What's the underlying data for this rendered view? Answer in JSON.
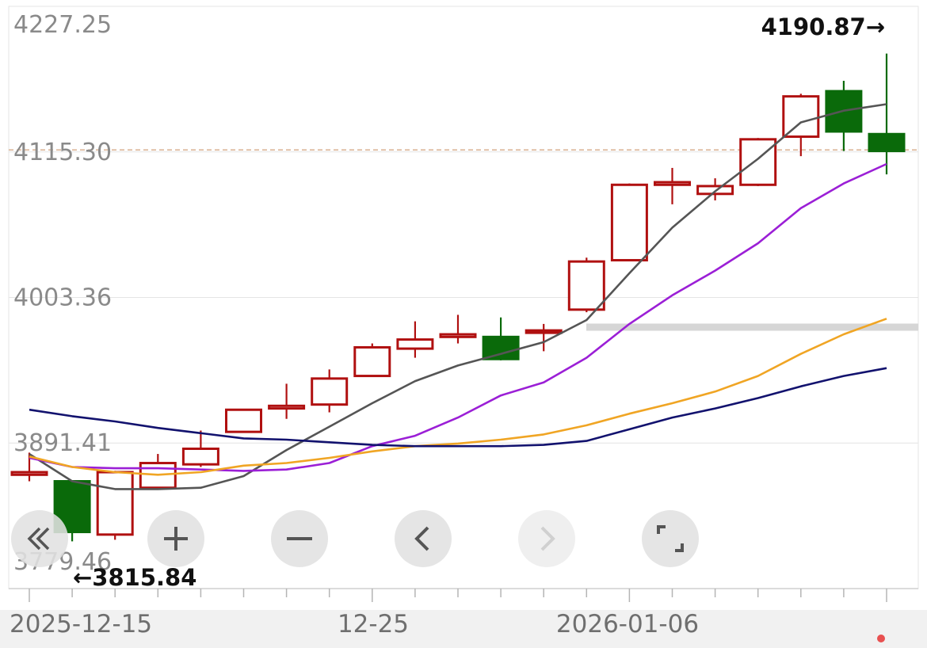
{
  "chart_data": {
    "type": "candlestick",
    "y_labels": [
      "4227.25",
      "4115.30",
      "4003.36",
      "3891.41",
      "3779.46"
    ],
    "x_labels": [
      "2025-12-15",
      "12-25",
      "2026-01-06"
    ],
    "max_annotation": "4190.87→",
    "min_annotation": "←3815.84",
    "reference_price": 4116.8,
    "candles": [
      {
        "o": 3867.0,
        "h": 3884.0,
        "l": 3862.0,
        "c": 3869.0
      },
      {
        "o": 3862.0,
        "h": 3862.0,
        "l": 3815.8,
        "c": 3823.0
      },
      {
        "o": 3821.0,
        "h": 3870.0,
        "l": 3817.0,
        "c": 3869.0
      },
      {
        "o": 3857.0,
        "h": 3883.0,
        "l": 3857.0,
        "c": 3876.0
      },
      {
        "o": 3875.0,
        "h": 3901.0,
        "l": 3873.0,
        "c": 3887.0
      },
      {
        "o": 3900.0,
        "h": 3917.0,
        "l": 3900.0,
        "c": 3917.0
      },
      {
        "o": 3918.0,
        "h": 3937.0,
        "l": 3910.0,
        "c": 3920.0
      },
      {
        "o": 3921.0,
        "h": 3948.0,
        "l": 3915.0,
        "c": 3941.0
      },
      {
        "o": 3943.0,
        "h": 3968.0,
        "l": 3943.0,
        "c": 3965.0
      },
      {
        "o": 3964.0,
        "h": 3985.0,
        "l": 3957.0,
        "c": 3971.0
      },
      {
        "o": 3973.0,
        "h": 3990.0,
        "l": 3968.0,
        "c": 3975.0
      },
      {
        "o": 3973.0,
        "h": 3988.0,
        "l": 3955.0,
        "c": 3956.0
      },
      {
        "o": 3977.0,
        "h": 3983.0,
        "l": 3962.0,
        "c": 3978.0
      },
      {
        "o": 3994.0,
        "h": 4034.0,
        "l": 3992.0,
        "c": 4031.0
      },
      {
        "o": 4032.0,
        "h": 4091.0,
        "l": 4032.0,
        "c": 4090.0
      },
      {
        "o": 4090.0,
        "h": 4103.0,
        "l": 4075.0,
        "c": 4092.0
      },
      {
        "o": 4083.0,
        "h": 4095.0,
        "l": 4078.0,
        "c": 4089.0
      },
      {
        "o": 4090.0,
        "h": 4126.0,
        "l": 4089.0,
        "c": 4125.0
      },
      {
        "o": 4127.0,
        "h": 4160.0,
        "l": 4112.0,
        "c": 4158.0
      },
      {
        "o": 4162.0,
        "h": 4170.0,
        "l": 4116.0,
        "c": 4131.0
      },
      {
        "o": 4129.0,
        "h": 4190.9,
        "l": 4098.0,
        "c": 4116.0
      }
    ],
    "ma_series": [
      {
        "color": "#555555",
        "values": [
          3883,
          3862,
          3856,
          3856,
          3857,
          3866,
          3886,
          3904,
          3922,
          3939,
          3951,
          3960,
          3969,
          3986,
          4022,
          4057,
          4085,
          4110,
          4138,
          4147,
          4152
        ]
      },
      {
        "color": "#9b1fd6",
        "values": [
          3880,
          3873,
          3872,
          3872,
          3871,
          3870,
          3871,
          3876,
          3889,
          3897,
          3911,
          3928,
          3938,
          3957,
          3983,
          4005,
          4024,
          4045,
          4072,
          4091,
          4106
        ]
      },
      {
        "color": "#f0a524",
        "values": [
          3881,
          3873,
          3869,
          3867,
          3869,
          3874,
          3876,
          3880,
          3885,
          3889,
          3891,
          3894,
          3898,
          3905,
          3914,
          3922,
          3931,
          3943,
          3960,
          3975,
          3987
        ]
      },
      {
        "color": "#12126e",
        "values": [
          3917,
          3912,
          3908,
          3903,
          3899,
          3895,
          3894,
          3892,
          3890,
          3889,
          3889,
          3889,
          3890,
          3893,
          3902,
          3911,
          3918,
          3926,
          3935,
          3943,
          3949
        ]
      }
    ],
    "colors": {
      "up": "#b01010",
      "down": "#0a6a0a",
      "grid": "#e4e4e4",
      "reference": "#d8b090"
    },
    "icons": [
      "double-chevron-left-icon",
      "plus-icon",
      "minus-icon",
      "chevron-left-icon",
      "chevron-right-icon",
      "fit-screen-icon"
    ]
  }
}
